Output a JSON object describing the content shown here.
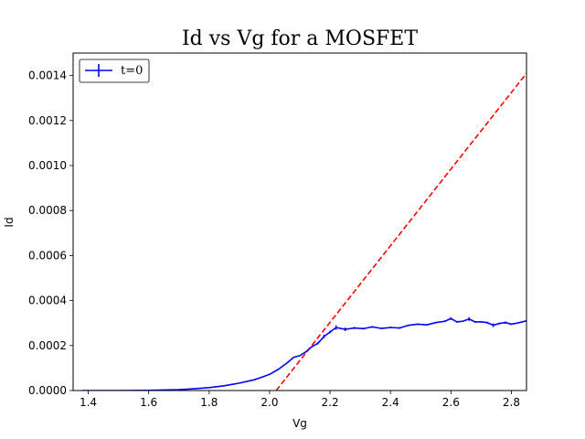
{
  "chart_data": {
    "type": "line",
    "title": "Id vs Vg for a MOSFET",
    "xlabel": "Vg",
    "ylabel": "Id",
    "xlim": [
      1.35,
      2.85
    ],
    "ylim": [
      0,
      0.0015
    ],
    "x_ticks": [
      "1.4",
      "1.6",
      "1.8",
      "2.0",
      "2.2",
      "2.4",
      "2.6",
      "2.8"
    ],
    "y_ticks": [
      "0.0000",
      "0.0002",
      "0.0004",
      "0.0006",
      "0.0008",
      "0.0010",
      "0.0012",
      "0.0014"
    ],
    "grid": false,
    "legend_position": "top-left",
    "series": [
      {
        "name": "t=0",
        "style": "solid line with error bars",
        "color": "#0000ff",
        "x": [
          1.38,
          1.5,
          1.6,
          1.7,
          1.75,
          1.8,
          1.85,
          1.9,
          1.95,
          1.98,
          2.0,
          2.03,
          2.06,
          2.08,
          2.1,
          2.12,
          2.14,
          2.16,
          2.18,
          2.2,
          2.22,
          2.25,
          2.28,
          2.31,
          2.34,
          2.37,
          2.4,
          2.43,
          2.46,
          2.49,
          2.52,
          2.55,
          2.58,
          2.6,
          2.62,
          2.64,
          2.66,
          2.68,
          2.7,
          2.72,
          2.74,
          2.76,
          2.78,
          2.8,
          2.82,
          2.85
        ],
        "y": [
          0.0,
          0.0,
          1e-06,
          4e-06,
          8e-06,
          1.3e-05,
          2.1e-05,
          3.3e-05,
          4.8e-05,
          6.2e-05,
          7.2e-05,
          9.5e-05,
          0.000125,
          0.000148,
          0.000155,
          0.000172,
          0.000195,
          0.00021,
          0.00024,
          0.00026,
          0.00028,
          0.000272,
          0.000278,
          0.000275,
          0.000283,
          0.000276,
          0.00028,
          0.000278,
          0.00029,
          0.000295,
          0.000292,
          0.000302,
          0.000308,
          0.00032,
          0.000305,
          0.000308,
          0.000318,
          0.000305,
          0.000305,
          0.000302,
          0.00029,
          0.000298,
          0.000302,
          0.000295,
          0.0003,
          0.00031
        ],
        "yerr": [
          0,
          0,
          0,
          0,
          0,
          0,
          0,
          0,
          0,
          0,
          0,
          0,
          0,
          0,
          0,
          0,
          0,
          5e-06,
          8e-06,
          6e-06,
          1e-05,
          8e-06,
          5e-06,
          4e-06,
          4e-06,
          3e-06,
          4e-06,
          4e-06,
          3e-06,
          3e-06,
          3e-06,
          3e-06,
          4e-06,
          6e-06,
          4e-06,
          3e-06,
          8e-06,
          4e-06,
          3e-06,
          4e-06,
          8e-06,
          4e-06,
          5e-06,
          3e-06,
          3e-06,
          3e-06
        ]
      },
      {
        "style": "dashed",
        "color": "#ff0000",
        "x": [
          2.022,
          2.85
        ],
        "y": [
          0.0,
          0.00141
        ]
      }
    ]
  }
}
